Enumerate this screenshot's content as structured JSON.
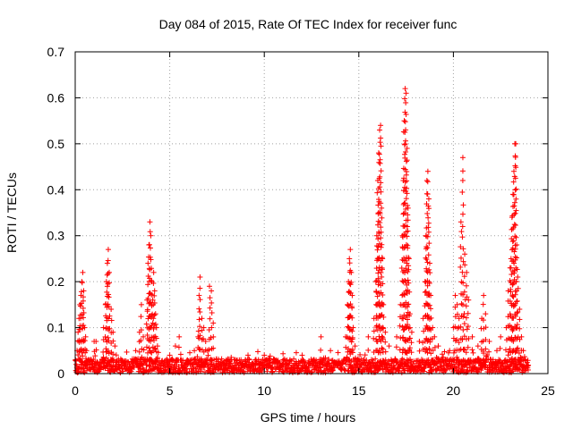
{
  "chart_data": {
    "type": "scatter",
    "title": "Day 084 of 2015, Rate Of TEC Index for receiver func",
    "xlabel": "GPS time / hours",
    "ylabel": "ROTI / TECUs",
    "xlim": [
      0,
      25
    ],
    "ylim": [
      0,
      0.7
    ],
    "xticks": [
      0,
      5,
      10,
      15,
      20,
      25
    ],
    "yticks": [
      0,
      0.1,
      0.2,
      0.3,
      0.4,
      0.5,
      0.6,
      0.7
    ],
    "xtick_labels": [
      "0",
      "5",
      "10",
      "15",
      "20",
      "25"
    ],
    "ytick_labels": [
      "0",
      "0.1",
      "0.2",
      "0.3",
      "0.4",
      "0.5",
      "0.6",
      "0.7"
    ],
    "grid": true,
    "marker": "+",
    "color": "#ff0000",
    "x_range_of_points": [
      0,
      24
    ],
    "points": [
      [
        0.05,
        0.02
      ],
      [
        0.1,
        0.05
      ],
      [
        0.15,
        0.09
      ],
      [
        0.2,
        0.12
      ],
      [
        0.25,
        0.15
      ],
      [
        0.3,
        0.17
      ],
      [
        0.35,
        0.2
      ],
      [
        0.4,
        0.22
      ],
      [
        0.45,
        0.18
      ],
      [
        0.5,
        0.1
      ],
      [
        0.55,
        0.08
      ],
      [
        0.6,
        0.05
      ],
      [
        1.0,
        0.07
      ],
      [
        1.1,
        0.07
      ],
      [
        1.5,
        0.1
      ],
      [
        1.6,
        0.15
      ],
      [
        1.65,
        0.2
      ],
      [
        1.7,
        0.24
      ],
      [
        1.75,
        0.27
      ],
      [
        1.8,
        0.22
      ],
      [
        1.9,
        0.14
      ],
      [
        2.0,
        0.09
      ],
      [
        2.1,
        0.06
      ],
      [
        3.2,
        0.05
      ],
      [
        3.4,
        0.09
      ],
      [
        3.5,
        0.15
      ],
      [
        3.6,
        0.08
      ],
      [
        3.8,
        0.16
      ],
      [
        3.85,
        0.24
      ],
      [
        3.9,
        0.28
      ],
      [
        3.95,
        0.33
      ],
      [
        4.0,
        0.3
      ],
      [
        4.05,
        0.2
      ],
      [
        4.1,
        0.16
      ],
      [
        4.15,
        0.22
      ],
      [
        4.2,
        0.18
      ],
      [
        4.25,
        0.13
      ],
      [
        4.3,
        0.1
      ],
      [
        4.35,
        0.06
      ],
      [
        5.0,
        0.04
      ],
      [
        5.3,
        0.06
      ],
      [
        5.5,
        0.08
      ],
      [
        6.3,
        0.05
      ],
      [
        6.5,
        0.08
      ],
      [
        6.55,
        0.17
      ],
      [
        6.6,
        0.21
      ],
      [
        6.7,
        0.12
      ],
      [
        6.8,
        0.1
      ],
      [
        6.9,
        0.07
      ],
      [
        7.0,
        0.05
      ],
      [
        7.1,
        0.19
      ],
      [
        7.2,
        0.18
      ],
      [
        7.3,
        0.11
      ],
      [
        8.0,
        0.03
      ],
      [
        9.0,
        0.03
      ],
      [
        10.0,
        0.04
      ],
      [
        11.0,
        0.03
      ],
      [
        12.0,
        0.04
      ],
      [
        13.0,
        0.08
      ],
      [
        13.5,
        0.05
      ],
      [
        14.3,
        0.08
      ],
      [
        14.4,
        0.15
      ],
      [
        14.45,
        0.2
      ],
      [
        14.5,
        0.25
      ],
      [
        14.55,
        0.27
      ],
      [
        14.6,
        0.22
      ],
      [
        14.65,
        0.17
      ],
      [
        14.7,
        0.1
      ],
      [
        14.8,
        0.06
      ],
      [
        15.5,
        0.08
      ],
      [
        15.8,
        0.12
      ],
      [
        15.9,
        0.2
      ],
      [
        15.95,
        0.3
      ],
      [
        16.0,
        0.42
      ],
      [
        16.05,
        0.48
      ],
      [
        16.1,
        0.53
      ],
      [
        16.15,
        0.54
      ],
      [
        16.2,
        0.36
      ],
      [
        16.25,
        0.25
      ],
      [
        16.3,
        0.15
      ],
      [
        16.4,
        0.09
      ],
      [
        16.6,
        0.06
      ],
      [
        17.0,
        0.08
      ],
      [
        17.2,
        0.15
      ],
      [
        17.3,
        0.3
      ],
      [
        17.35,
        0.42
      ],
      [
        17.4,
        0.55
      ],
      [
        17.45,
        0.62
      ],
      [
        17.5,
        0.61
      ],
      [
        17.55,
        0.49
      ],
      [
        17.6,
        0.36
      ],
      [
        17.65,
        0.25
      ],
      [
        17.7,
        0.13
      ],
      [
        17.8,
        0.09
      ],
      [
        18.2,
        0.07
      ],
      [
        18.4,
        0.12
      ],
      [
        18.5,
        0.2
      ],
      [
        18.55,
        0.3
      ],
      [
        18.6,
        0.42
      ],
      [
        18.65,
        0.44
      ],
      [
        18.7,
        0.38
      ],
      [
        18.75,
        0.24
      ],
      [
        18.8,
        0.17
      ],
      [
        18.9,
        0.1
      ],
      [
        19.0,
        0.08
      ],
      [
        19.2,
        0.06
      ],
      [
        19.8,
        0.05
      ],
      [
        20.0,
        0.1
      ],
      [
        20.1,
        0.17
      ],
      [
        20.2,
        0.15
      ],
      [
        20.3,
        0.12
      ],
      [
        20.4,
        0.33
      ],
      [
        20.5,
        0.47
      ],
      [
        20.6,
        0.26
      ],
      [
        20.7,
        0.22
      ],
      [
        20.8,
        0.16
      ],
      [
        21.0,
        0.08
      ],
      [
        21.3,
        0.06
      ],
      [
        21.5,
        0.12
      ],
      [
        21.6,
        0.17
      ],
      [
        21.7,
        0.13
      ],
      [
        21.9,
        0.07
      ],
      [
        22.3,
        0.05
      ],
      [
        22.5,
        0.08
      ],
      [
        22.8,
        0.1
      ],
      [
        22.9,
        0.18
      ],
      [
        23.0,
        0.23
      ],
      [
        23.05,
        0.25
      ],
      [
        23.1,
        0.34
      ],
      [
        23.15,
        0.39
      ],
      [
        23.2,
        0.44
      ],
      [
        23.25,
        0.5
      ],
      [
        23.3,
        0.5
      ],
      [
        23.35,
        0.28
      ],
      [
        23.4,
        0.21
      ],
      [
        23.5,
        0.14
      ],
      [
        23.6,
        0.08
      ],
      [
        23.7,
        0.05
      ],
      [
        23.8,
        0.03
      ]
    ]
  }
}
